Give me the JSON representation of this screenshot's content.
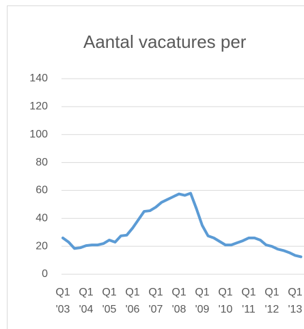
{
  "chart_data": {
    "type": "line",
    "title": "Aantal vacatures per",
    "categories": [
      "Q1 '03",
      null,
      null,
      null,
      "Q1 '04",
      null,
      null,
      null,
      "Q1 '05",
      null,
      null,
      null,
      "Q1 '06",
      null,
      null,
      null,
      "Q1 '07",
      null,
      null,
      null,
      "Q1 '08",
      null,
      null,
      null,
      "Q1 '09",
      null,
      null,
      null,
      "Q1 '10",
      null,
      null,
      null,
      "Q1 '11",
      null,
      null,
      null,
      "Q1 '12",
      null,
      null,
      null,
      "Q1 '13",
      null
    ],
    "series": [
      {
        "color": "#5b9bd5",
        "values": [
          26,
          23,
          18.5,
          19,
          20.5,
          21,
          21,
          22,
          24.5,
          23,
          27.5,
          28,
          33,
          39,
          45,
          45.5,
          48,
          51.5,
          53.5,
          55.5,
          57.5,
          56.5,
          58,
          47,
          35,
          27.5,
          26,
          23.5,
          21,
          21,
          22.5,
          24,
          26,
          26,
          24.5,
          21,
          20,
          18,
          17,
          15.5,
          13.5,
          12.5
        ]
      }
    ],
    "ylim": [
      0,
      140
    ],
    "yticks": [
      0,
      20,
      40,
      60,
      80,
      100,
      120,
      140
    ],
    "grid": true
  }
}
